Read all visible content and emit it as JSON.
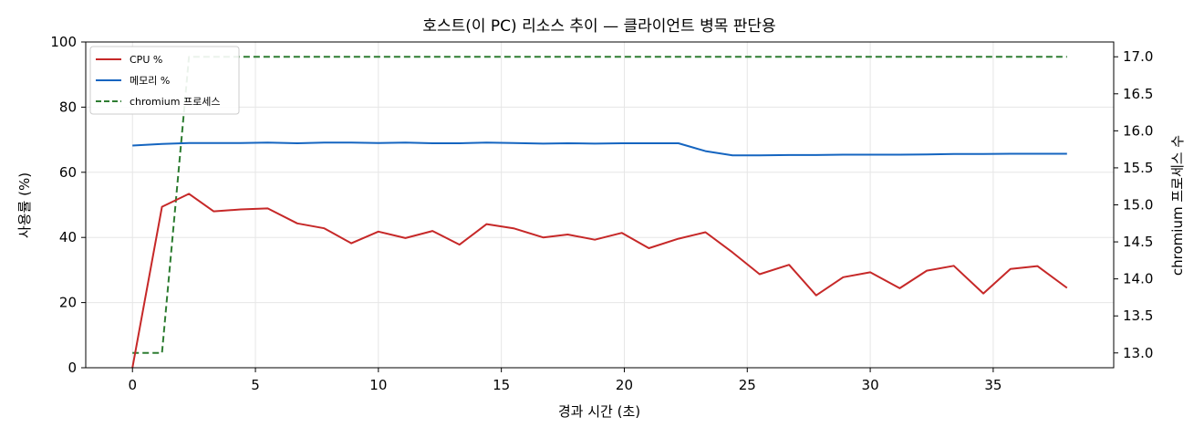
{
  "chart_data": {
    "type": "line",
    "title": "호스트(이 PC) 리소스 추이 — 클라이언트 병목 판단용",
    "xlabel": "경과 시간 (초)",
    "ylabel": "사용률 (%)",
    "y2label": "chromium 프로세스 수",
    "xlim": [
      -1.9,
      39.9
    ],
    "ylim": [
      0,
      100
    ],
    "y2lim": [
      12.8,
      17.2
    ],
    "xticks": [
      "0",
      "5",
      "10",
      "15",
      "20",
      "25",
      "30",
      "35"
    ],
    "yticks": [
      "0",
      "20",
      "40",
      "60",
      "80",
      "100"
    ],
    "y2ticks": [
      "13.0",
      "13.5",
      "14.0",
      "14.5",
      "15.0",
      "15.5",
      "16.0",
      "16.5",
      "17.0"
    ],
    "grid": true,
    "legend_position": "upper-left",
    "x": [
      0,
      1.2,
      2.3,
      3.3,
      4.4,
      5.5,
      6.7,
      7.8,
      8.9,
      10.0,
      11.1,
      12.2,
      13.3,
      14.4,
      15.5,
      16.7,
      17.7,
      18.8,
      19.9,
      21.0,
      22.2,
      23.3,
      24.4,
      25.5,
      26.7,
      27.8,
      28.9,
      30.0,
      31.2,
      32.3,
      33.4,
      34.6,
      35.7,
      36.8,
      38.0
    ],
    "series": [
      {
        "name": "CPU %",
        "axis": "left",
        "color": "#c62828",
        "style": "solid",
        "values": [
          0,
          49.4,
          53.4,
          48,
          48.6,
          48.9,
          44.3,
          42.8,
          38.2,
          41.8,
          39.8,
          42,
          37.8,
          44.1,
          42.8,
          40,
          40.9,
          39.3,
          41.4,
          36.7,
          39.6,
          41.6,
          35.4,
          28.7,
          31.6,
          22.2,
          27.8,
          29.3,
          24.4,
          29.8,
          31.3,
          22.8,
          30.3,
          31.2,
          24.5
        ]
      },
      {
        "name": "메모리 %",
        "axis": "left",
        "color": "#1565c0",
        "style": "solid",
        "values": [
          68.2,
          68.7,
          69,
          69,
          69,
          69.1,
          68.9,
          69.1,
          69.1,
          69,
          69.1,
          68.9,
          68.9,
          69.1,
          69,
          68.8,
          68.9,
          68.8,
          68.9,
          68.9,
          68.9,
          66.5,
          65.2,
          65.2,
          65.3,
          65.3,
          65.4,
          65.4,
          65.4,
          65.5,
          65.6,
          65.6,
          65.7,
          65.7,
          65.7
        ]
      },
      {
        "name": "chromium 프로세스",
        "axis": "right",
        "color": "#2e7d32",
        "style": "dashed",
        "values": [
          13,
          13,
          17,
          17,
          17,
          17,
          17,
          17,
          17,
          17,
          17,
          17,
          17,
          17,
          17,
          17,
          17,
          17,
          17,
          17,
          17,
          17,
          17,
          17,
          17,
          17,
          17,
          17,
          17,
          17,
          17,
          17,
          17,
          17,
          17
        ]
      }
    ]
  }
}
